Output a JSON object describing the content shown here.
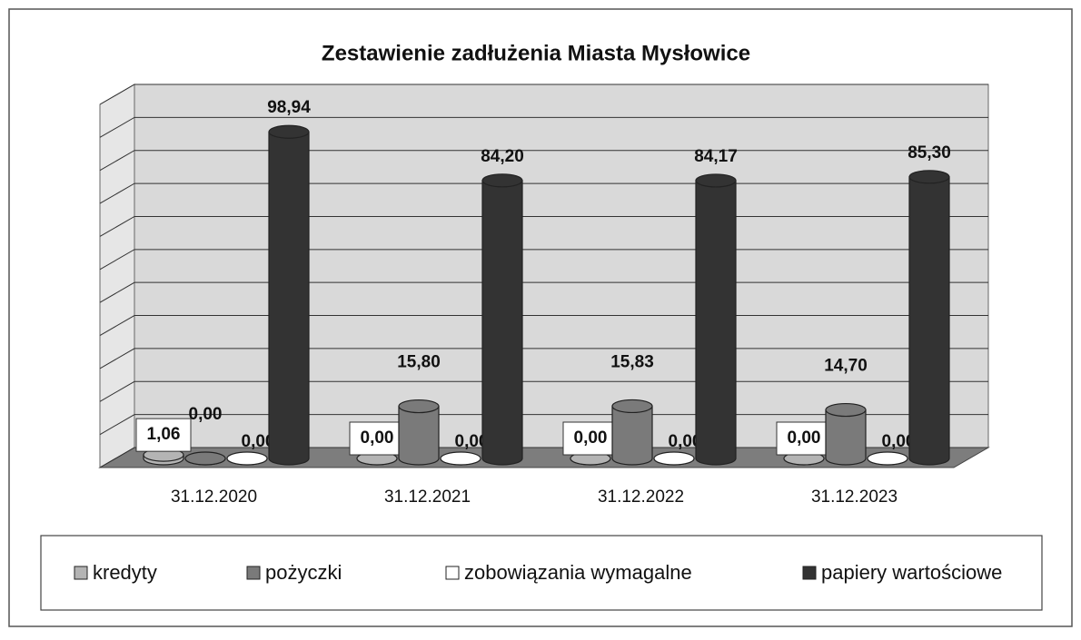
{
  "chart_data": {
    "type": "bar",
    "title": "Zestawienie zadłużenia Miasta Mysłowice",
    "categories": [
      "31.12.2020",
      "31.12.2021",
      "31.12.2022",
      "31.12.2023"
    ],
    "series": [
      {
        "name": "kredyty",
        "color": "#b4b4b4",
        "values": [
          1.06,
          0,
          0,
          0
        ],
        "value_labels": [
          "1,06",
          "0,00",
          "0,00",
          "0,00"
        ]
      },
      {
        "name": "pożyczki",
        "color": "#7a7a7a",
        "values": [
          0,
          15.8,
          15.83,
          14.7
        ],
        "value_labels": [
          "0,00",
          "15,80",
          "15,83",
          "14,70"
        ]
      },
      {
        "name": "zobowiązania wymagalne",
        "color": "#ffffff",
        "values": [
          0,
          0,
          0,
          0
        ],
        "value_labels": [
          "0,00",
          "0,00",
          "0,00",
          "0,00"
        ]
      },
      {
        "name": "papiery wartościowe",
        "color": "#333333",
        "values": [
          98.94,
          84.2,
          84.17,
          85.3
        ],
        "value_labels": [
          "98,94",
          "84,20",
          "84,17",
          "85,30"
        ]
      }
    ],
    "ylim": [
      0,
      110
    ],
    "yticks": [
      0,
      10,
      20,
      30,
      40,
      50,
      60,
      70,
      80,
      90,
      100,
      110
    ],
    "grid": true
  }
}
